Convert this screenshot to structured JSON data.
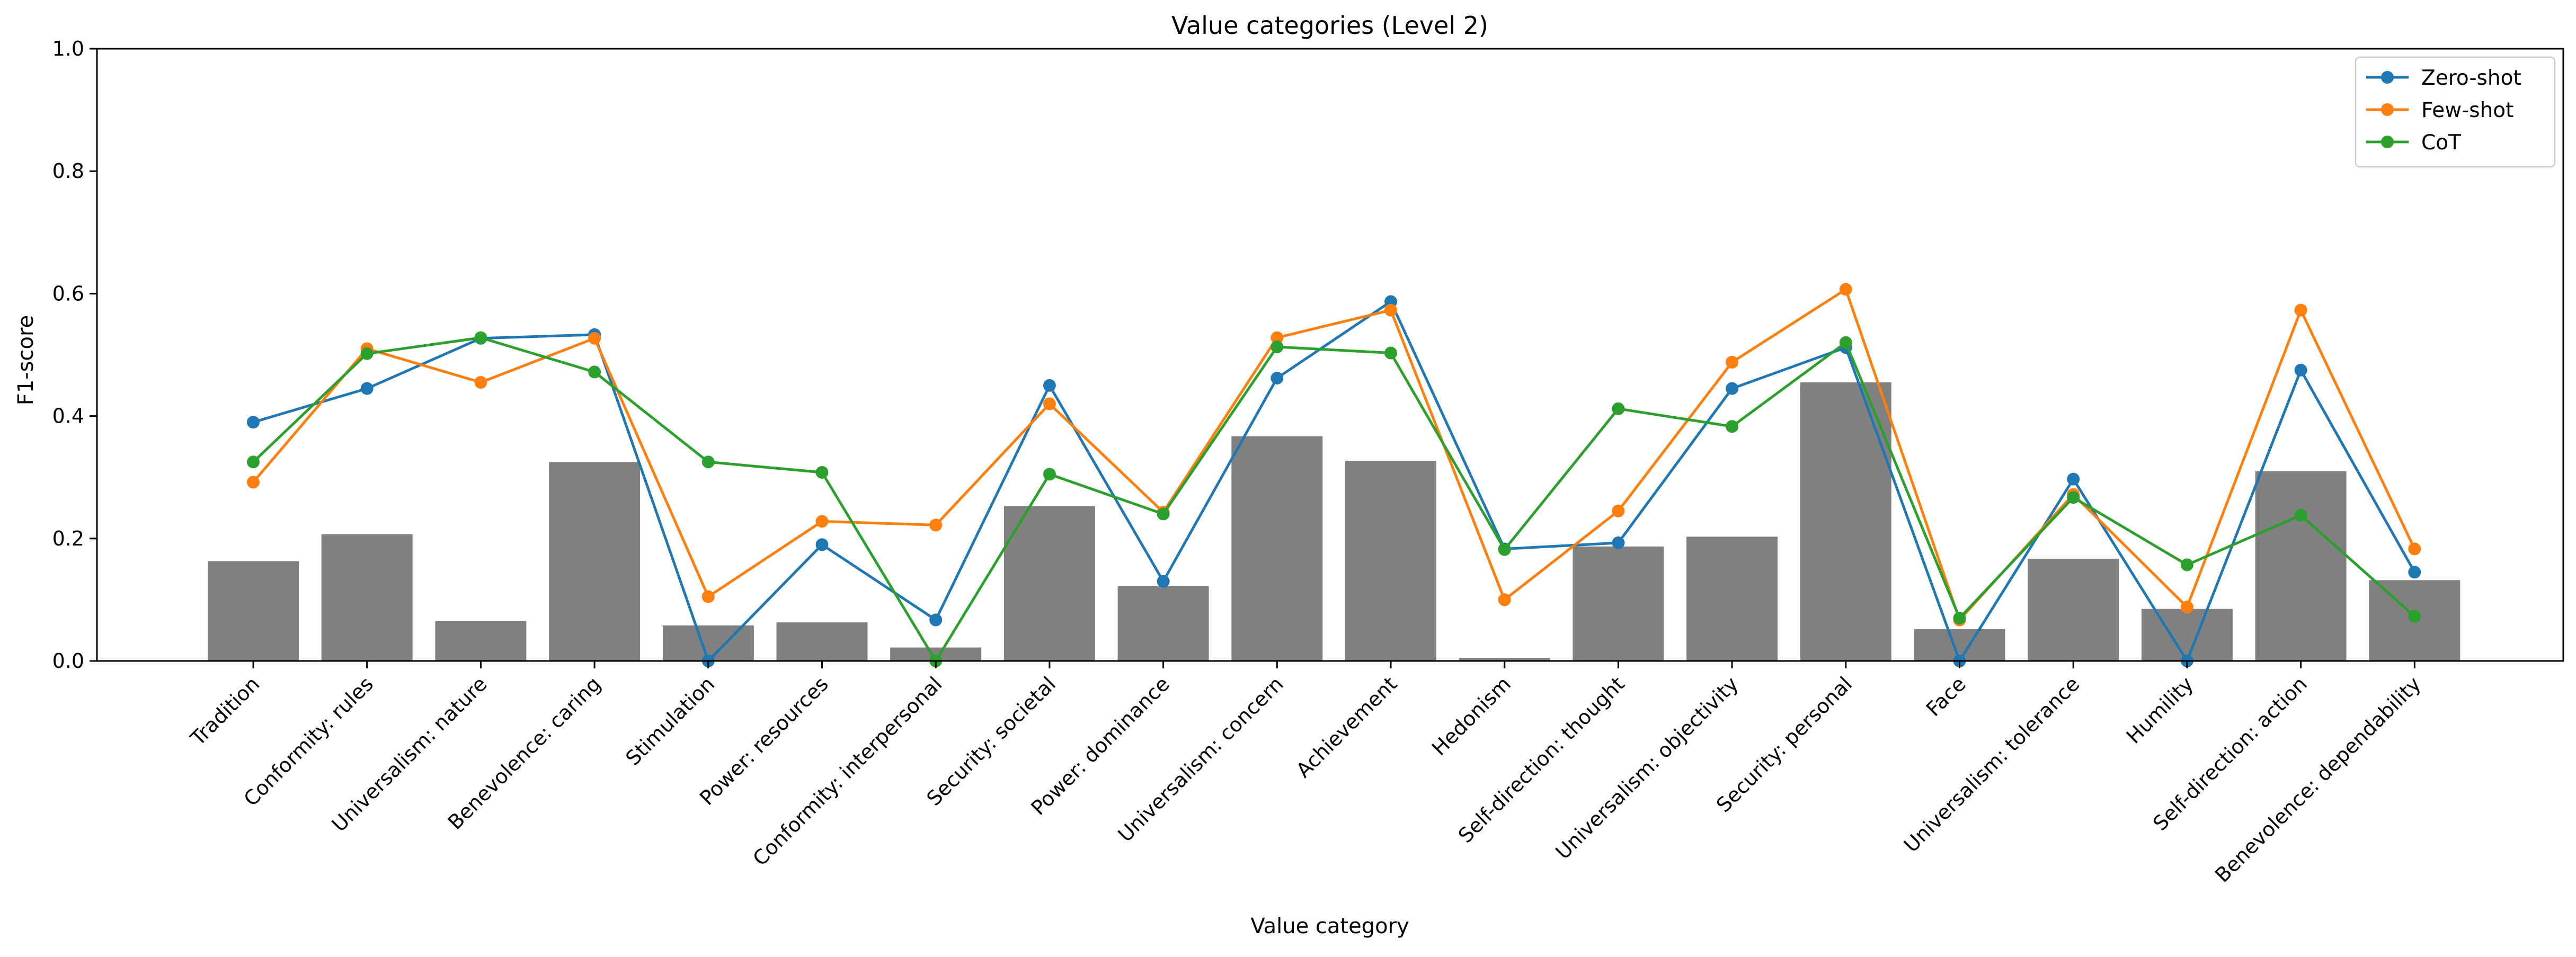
{
  "chart_data": {
    "type": "bar+line",
    "title": "Value categories (Level 2)",
    "xlabel": "Value category",
    "ylabel": "F1-score",
    "ylim": [
      0,
      1.0
    ],
    "yticks": [
      "0.0",
      "0.2",
      "0.4",
      "0.6",
      "0.8",
      "1.0"
    ],
    "grid": false,
    "legend_position": "top-right",
    "categories": [
      "Tradition",
      "Conformity: rules",
      "Universalism: nature",
      "Benevolence: caring",
      "Stimulation",
      "Power: resources",
      "Conformity: interpersonal",
      "Security: societal",
      "Power: dominance",
      "Universalism: concern",
      "Achievement",
      "Hedonism",
      "Self-direction: thought",
      "Universalism: objectivity",
      "Security: personal",
      "Face",
      "Universalism: tolerance",
      "Humility",
      "Self-direction: action",
      "Benevolence: dependability"
    ],
    "bars": {
      "color": "#808080",
      "values": [
        0.163,
        0.207,
        0.065,
        0.325,
        0.058,
        0.063,
        0.022,
        0.253,
        0.122,
        0.367,
        0.327,
        0.005,
        0.187,
        0.203,
        0.455,
        0.052,
        0.167,
        0.085,
        0.31,
        0.132
      ]
    },
    "series": [
      {
        "name": "Zero-shot",
        "color": "#1f77b4",
        "values": [
          0.39,
          0.445,
          0.527,
          0.533,
          0.0,
          0.19,
          0.067,
          0.45,
          0.13,
          0.462,
          0.587,
          0.183,
          0.193,
          0.445,
          0.512,
          0.0,
          0.297,
          0.0,
          0.475,
          0.145
        ]
      },
      {
        "name": "Few-shot",
        "color": "#ff7f0e",
        "values": [
          0.292,
          0.51,
          0.455,
          0.527,
          0.105,
          0.228,
          0.222,
          0.42,
          0.243,
          0.528,
          0.573,
          0.1,
          0.245,
          0.488,
          0.607,
          0.067,
          0.272,
          0.088,
          0.573,
          0.183
        ]
      },
      {
        "name": "CoT",
        "color": "#2ca02c",
        "values": [
          0.325,
          0.502,
          0.528,
          0.472,
          0.325,
          0.308,
          0.0,
          0.305,
          0.24,
          0.513,
          0.503,
          0.182,
          0.412,
          0.383,
          0.52,
          0.07,
          0.267,
          0.157,
          0.238,
          0.073
        ]
      }
    ]
  }
}
